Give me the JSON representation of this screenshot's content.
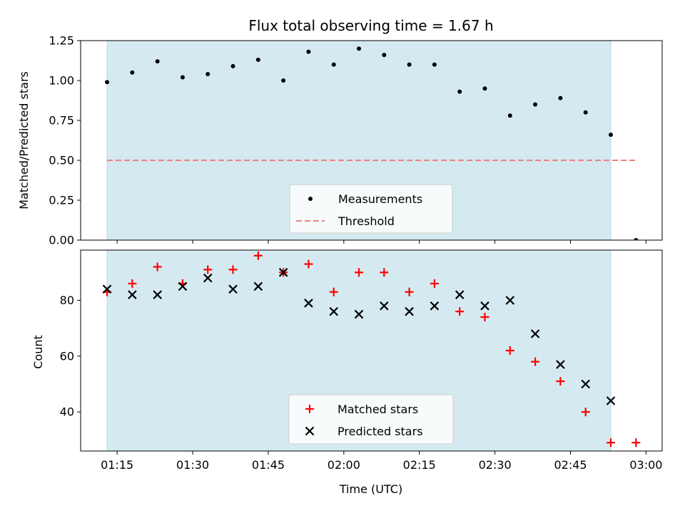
{
  "chart_data": [
    {
      "type": "scatter",
      "title": "Flux total observing time = 1.67 h",
      "xlabel": "",
      "ylabel": "Matched/Predicted stars",
      "ylim": [
        0,
        1.25
      ],
      "yticks": [
        "0.00",
        "0.25",
        "0.50",
        "0.75",
        "1.00",
        "1.25"
      ],
      "shaded_span": [
        "01:13",
        "02:53"
      ],
      "series": [
        {
          "name": "Measurements",
          "marker": "dot",
          "color": "#000000",
          "x": [
            "01:13",
            "01:18",
            "01:23",
            "01:28",
            "01:33",
            "01:38",
            "01:43",
            "01:48",
            "01:53",
            "01:58",
            "02:03",
            "02:08",
            "02:13",
            "02:18",
            "02:23",
            "02:28",
            "02:33",
            "02:38",
            "02:43",
            "02:48",
            "02:53",
            "02:58"
          ],
          "y": [
            0.99,
            1.05,
            1.12,
            1.02,
            1.04,
            1.09,
            1.13,
            1.0,
            1.18,
            1.1,
            1.2,
            1.16,
            1.1,
            1.1,
            0.93,
            0.95,
            0.78,
            0.85,
            0.89,
            0.8,
            0.66,
            0.0
          ]
        },
        {
          "name": "Threshold",
          "style": "dashed-line",
          "color": "#f08080",
          "x": [
            "01:13",
            "02:58"
          ],
          "y": [
            0.5,
            0.5
          ]
        }
      ],
      "legend": "lower center"
    },
    {
      "type": "scatter",
      "xlabel": "Time (UTC)",
      "ylabel": "Count",
      "yticks": [
        "40",
        "60",
        "80"
      ],
      "ylim": [
        26,
        98
      ],
      "xticks": [
        "01:15",
        "01:30",
        "01:45",
        "02:00",
        "02:15",
        "02:30",
        "02:45",
        "03:00"
      ],
      "shaded_span": [
        "01:13",
        "02:53"
      ],
      "series": [
        {
          "name": "Matched stars",
          "marker": "plus",
          "color": "#ff0000",
          "x": [
            "01:13",
            "01:18",
            "01:23",
            "01:28",
            "01:33",
            "01:38",
            "01:43",
            "01:48",
            "01:53",
            "01:58",
            "02:03",
            "02:08",
            "02:13",
            "02:18",
            "02:23",
            "02:28",
            "02:33",
            "02:38",
            "02:43",
            "02:48",
            "02:53",
            "02:58"
          ],
          "y": [
            83,
            86,
            92,
            86,
            91,
            91,
            96,
            90,
            93,
            83,
            90,
            90,
            83,
            86,
            76,
            74,
            62,
            58,
            51,
            40,
            29,
            29
          ]
        },
        {
          "name": "Predicted stars",
          "marker": "x",
          "color": "#000000",
          "x": [
            "01:13",
            "01:18",
            "01:23",
            "01:28",
            "01:33",
            "01:38",
            "01:43",
            "01:48",
            "01:53",
            "01:58",
            "02:03",
            "02:08",
            "02:13",
            "02:18",
            "02:23",
            "02:28",
            "02:33",
            "02:38",
            "02:43",
            "02:48",
            "02:53"
          ],
          "y": [
            84,
            82,
            82,
            85,
            88,
            84,
            85,
            90,
            79,
            76,
            75,
            78,
            76,
            78,
            82,
            78,
            80,
            68,
            57,
            50,
            44
          ]
        }
      ],
      "legend": "lower center"
    }
  ]
}
